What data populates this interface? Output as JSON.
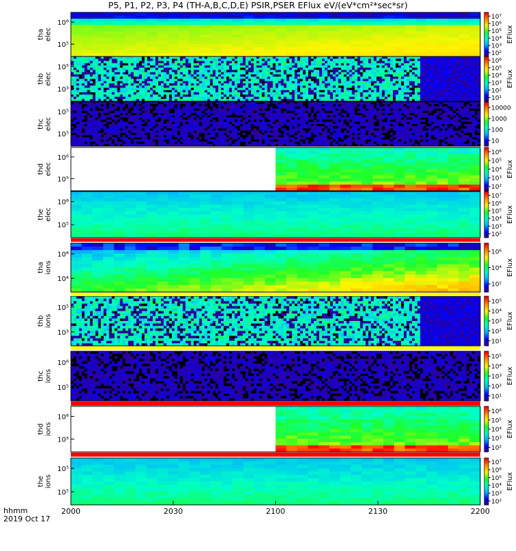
{
  "title": "P5, P1, P2, P3, P4 (TH-A,B,C,D,E) PSIR,PSER EFlux eV/(eV*cm²*sec*sr)",
  "x_units_line1": "hhmm",
  "x_units_line2": "2019 Oct 17",
  "chart_data": {
    "type": "heatmap",
    "x_ticks": [
      "2000",
      "2030",
      "2100",
      "2130",
      "2200"
    ],
    "x_range": [
      "20:00",
      "22:00"
    ],
    "colormap": [
      "#3a0080",
      "#0000ff",
      "#00b4ff",
      "#00ffc8",
      "#1eff28",
      "#fff500",
      "#ff8c00",
      "#ff0000"
    ],
    "panels": [
      {
        "id": "tha-elec",
        "ylabel": [
          "tha",
          "elec"
        ],
        "yticks": [
          "10⁶",
          "10⁵"
        ],
        "cbar_label": "EFlux",
        "cbar_ticks": [
          "10⁷",
          "10⁶",
          "10⁵",
          "10⁴",
          "10³",
          "10²"
        ],
        "pattern": "smooth_high",
        "data_start": 0.0,
        "data_end": 1.0
      },
      {
        "id": "thb-elec",
        "ylabel": [
          "thb",
          "elec"
        ],
        "yticks": [
          "10⁵",
          "10³"
        ],
        "cbar_label": "EFlux",
        "cbar_ticks": [
          "10⁶",
          "10⁵",
          "10⁴",
          "10³",
          "10²",
          "10¹"
        ],
        "pattern": "noisy_cyan",
        "data_start": 0.0,
        "data_end": 1.0,
        "noise_end": 0.85
      },
      {
        "id": "thc-elec",
        "ylabel": [
          "thc",
          "elec"
        ],
        "yticks": [
          "10⁵",
          "10⁵"
        ],
        "cbar_label": "",
        "cbar_ticks": [
          "10000",
          "1000",
          "100",
          "10"
        ],
        "pattern": "noisy_purple",
        "data_start": 0.0,
        "data_end": 1.0
      },
      {
        "id": "thd-elec",
        "ylabel": [
          "thd",
          "elec"
        ],
        "yticks": [
          "10⁶",
          "10⁵"
        ],
        "cbar_label": "EFlux",
        "cbar_ticks": [
          "10⁶",
          "10⁵",
          "10⁴",
          "10³",
          "10²"
        ],
        "pattern": "blocky_green",
        "data_start": 0.48,
        "data_end": 1.0
      },
      {
        "id": "the-elec",
        "ylabel": [
          "the",
          "elec"
        ],
        "yticks": [
          "10⁶",
          "10⁵"
        ],
        "cbar_label": "EFlux",
        "cbar_ticks": [
          "10⁷",
          "10⁶",
          "10⁵",
          "10⁴",
          "10³",
          "10²"
        ],
        "pattern": "smooth_cyan",
        "data_start": 0.0,
        "data_end": 1.0
      },
      {
        "id": "tha-ions",
        "ylabel": [
          "tha",
          "ions"
        ],
        "yticks": [
          "10⁶",
          "10⁴"
        ],
        "cbar_label": "EFlux",
        "cbar_ticks": [
          "10⁶",
          "10⁴",
          "10²"
        ],
        "pattern": "ions_gradient",
        "data_start": 0.0,
        "data_end": 1.0
      },
      {
        "id": "thb-ions",
        "ylabel": [
          "thb",
          "ions"
        ],
        "yticks": [
          "10⁵",
          "10³"
        ],
        "cbar_label": "EFlux",
        "cbar_ticks": [
          "10⁵",
          "10⁴",
          "10³",
          "10²",
          "10¹"
        ],
        "pattern": "noisy_cyan2",
        "data_start": 0.0,
        "data_end": 1.0,
        "noise_end": 0.85
      },
      {
        "id": "thc-ions",
        "ylabel": [
          "thc",
          "ions"
        ],
        "yticks": [
          "10⁶",
          "10⁵"
        ],
        "cbar_label": "EFlux",
        "cbar_ticks": [
          "10⁵",
          "10⁴",
          "10³",
          "10²",
          "10¹"
        ],
        "pattern": "noisy_purple2",
        "data_start": 0.0,
        "data_end": 1.0
      },
      {
        "id": "thd-ions",
        "ylabel": [
          "thd",
          "ions"
        ],
        "yticks": [
          "10⁶",
          "10⁵"
        ],
        "cbar_label": "EFlux",
        "cbar_ticks": [
          "10⁶",
          "10⁵",
          "10⁴",
          "10³",
          "10²"
        ],
        "pattern": "blocky_green2",
        "data_start": 0.48,
        "data_end": 1.0
      },
      {
        "id": "the-ions",
        "ylabel": [
          "the",
          "ions"
        ],
        "yticks": [
          "10⁵",
          "10⁵"
        ],
        "cbar_label": "EFlux",
        "cbar_ticks": [
          "10⁷",
          "10⁶",
          "10⁵",
          "10⁴",
          "10³",
          "10²"
        ],
        "pattern": "smooth_cyan2",
        "data_start": 0.0,
        "data_end": 1.0
      }
    ]
  }
}
